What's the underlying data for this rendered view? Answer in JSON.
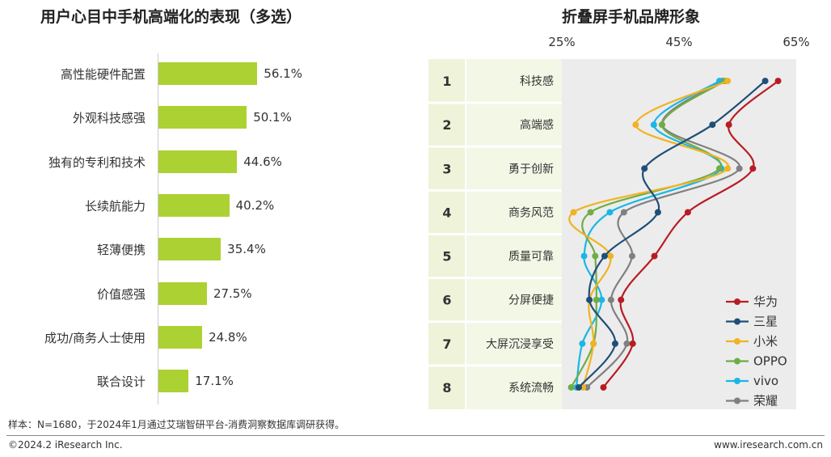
{
  "left_chart": {
    "title": "用户心目中手机高端化的表现（多选）",
    "chart_data": {
      "type": "bar",
      "orientation": "horizontal",
      "title": "用户心目中手机高端化的表现（多选）",
      "categories": [
        "高性能硬件配置",
        "外观科技感强",
        "独有的专利和技术",
        "长续航能力",
        "轻薄便携",
        "价值感强",
        "成功/商务人士使用",
        "联合设计"
      ],
      "values": [
        56.1,
        50.1,
        44.6,
        40.2,
        35.4,
        27.5,
        24.8,
        17.1
      ],
      "value_labels": [
        "56.1%",
        "50.1%",
        "44.6%",
        "40.2%",
        "35.4%",
        "27.5%",
        "24.8%",
        "17.1%"
      ],
      "unit": "%",
      "color": "#acd133"
    }
  },
  "right_chart": {
    "title": "折叠屏手机品牌形象",
    "chart_data": {
      "type": "line",
      "title": "折叠屏手机品牌形象",
      "x_ticks": [
        "25%",
        "45%",
        "65%"
      ],
      "xlim": [
        25,
        65
      ],
      "ranks": [
        "1",
        "2",
        "3",
        "4",
        "5",
        "6",
        "7",
        "8"
      ],
      "categories": [
        "科技感",
        "高端感",
        "勇于创新",
        "商务风范",
        "质量可靠",
        "分屏便捷",
        "大屏沉浸享受",
        "系统流畅"
      ],
      "series": [
        {
          "name": "华为",
          "color": "#b81c22",
          "values": [
            61.9,
            53.5,
            57.6,
            46.5,
            40.8,
            35.1,
            37.1,
            32.1
          ]
        },
        {
          "name": "三星",
          "color": "#1f4e79",
          "values": [
            59.7,
            50.7,
            39.1,
            41.4,
            32.3,
            29.7,
            34.1,
            27.9
          ]
        },
        {
          "name": "小米",
          "color": "#f0b323",
          "values": [
            53.3,
            37.6,
            53.3,
            27.0,
            33.3,
            29.7,
            30.4,
            28.6
          ]
        },
        {
          "name": "OPPO",
          "color": "#70ad47",
          "values": [
            52.8,
            42.1,
            51.9,
            29.9,
            30.7,
            30.9,
            30.4,
            26.6
          ]
        },
        {
          "name": "vivo",
          "color": "#1ab7e6",
          "values": [
            51.9,
            40.7,
            52.2,
            33.2,
            28.8,
            31.8,
            28.5,
            27.5
          ]
        },
        {
          "name": "荣耀",
          "color": "#808080",
          "values": [
            52.4,
            42.1,
            55.3,
            35.6,
            37.0,
            33.4,
            36.1,
            29.3
          ]
        }
      ]
    }
  },
  "footer": {
    "sample_note": "样本：N=1680，于2024年1月通过艾瑞智研平台-消费洞察数据库调研获得。",
    "copyright": "©2024.2 iResearch Inc.",
    "website": "www.iresearch.com.cn"
  }
}
